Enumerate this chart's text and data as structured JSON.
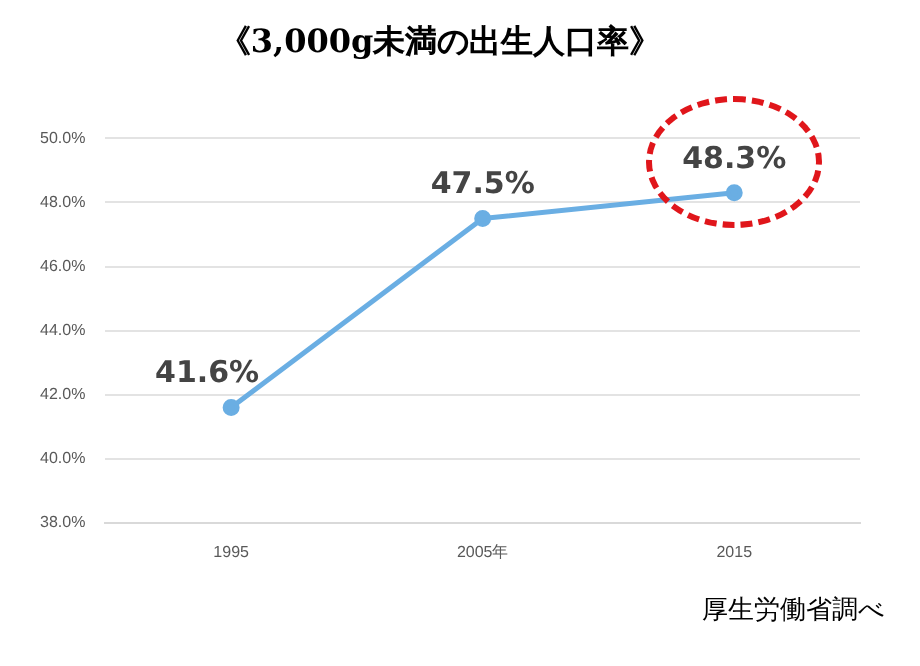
{
  "chart_data": {
    "type": "line",
    "title": "《3,000g未満の出生人口率》",
    "categories": [
      "1995",
      "2005年",
      "2015"
    ],
    "series": [
      {
        "color": "#6aaee3",
        "values": [
          41.6,
          47.5,
          48.3
        ],
        "value_labels": [
          "41.6%",
          "47.5%",
          "48.3%"
        ]
      }
    ],
    "ylim": [
      38,
      50
    ],
    "yticks": [
      {
        "value": 38,
        "label": "38.0%"
      },
      {
        "value": 40,
        "label": "40.0%"
      },
      {
        "value": 42,
        "label": "42.0%"
      },
      {
        "value": 44,
        "label": "44.0%"
      },
      {
        "value": 46,
        "label": "46.0%"
      },
      {
        "value": 48,
        "label": "48.0%"
      },
      {
        "value": 50,
        "label": "50.0%"
      }
    ],
    "grid": "y",
    "marker": "circle",
    "line_style": "solid",
    "legend": false,
    "annotations": [
      "厚生労働省調べ"
    ]
  }
}
